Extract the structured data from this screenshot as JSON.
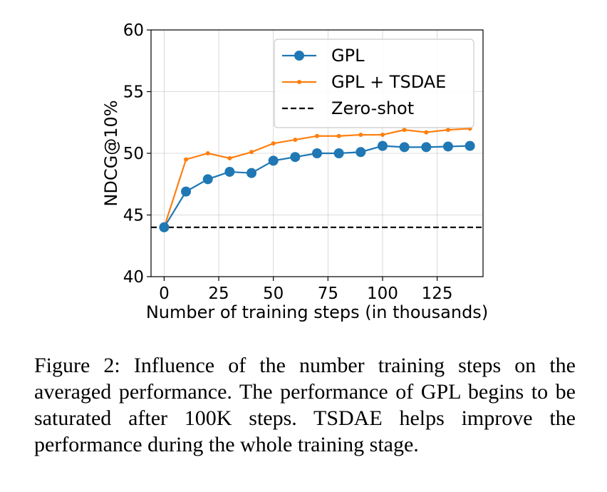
{
  "chart_data": {
    "type": "line",
    "title": "",
    "xlabel": "Number of training steps (in thousands)",
    "ylabel": "NDCG@10%",
    "xlim": [
      -6,
      146
    ],
    "ylim": [
      40,
      60
    ],
    "xticks": [
      0,
      25,
      50,
      75,
      100,
      125
    ],
    "yticks": [
      40,
      45,
      50,
      55,
      60
    ],
    "grid": true,
    "legend_position": "top-right",
    "series": [
      {
        "name": "GPL",
        "color": "#1f77b4",
        "marker": "circle",
        "x": [
          0,
          10,
          20,
          30,
          40,
          50,
          60,
          70,
          80,
          90,
          100,
          110,
          120,
          130,
          140
        ],
        "y": [
          44.0,
          46.9,
          47.9,
          48.5,
          48.4,
          49.4,
          49.7,
          50.0,
          50.0,
          50.1,
          50.6,
          50.5,
          50.5,
          50.55,
          50.6
        ]
      },
      {
        "name": "GPL + TSDAE",
        "color": "#ff7f0e",
        "marker": "point",
        "x": [
          0,
          10,
          20,
          30,
          40,
          50,
          60,
          70,
          80,
          90,
          100,
          110,
          120,
          130,
          140
        ],
        "y": [
          44.0,
          49.5,
          50.0,
          49.6,
          50.1,
          50.8,
          51.1,
          51.4,
          51.4,
          51.5,
          51.5,
          51.9,
          51.7,
          51.9,
          52.0
        ]
      },
      {
        "name": "Zero-shot",
        "color": "#000000",
        "style": "dashed",
        "y_constant": 44.0
      }
    ]
  },
  "caption": "Figure 2: Influence of the number training steps on the averaged performance.  The performance of GPL begins to be saturated after 100K steps. TSDAE helps improve the performance during the whole training stage."
}
